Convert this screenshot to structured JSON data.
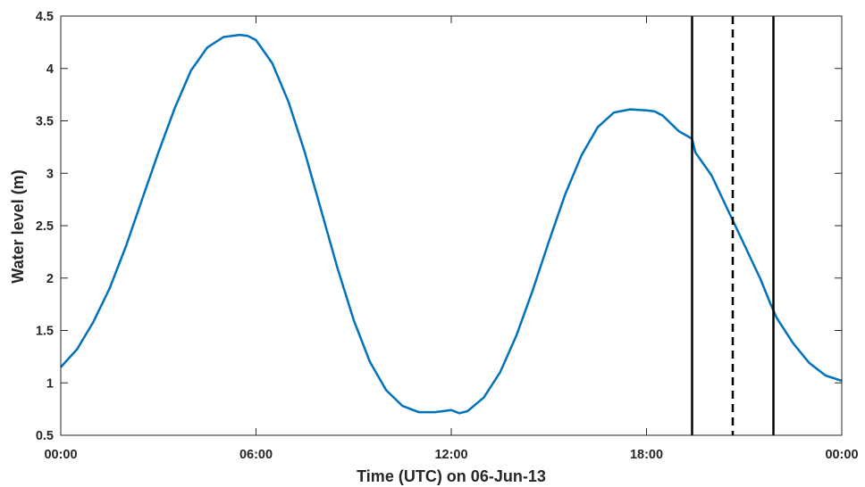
{
  "chart_data": {
    "type": "line",
    "title": "",
    "xlabel": "Time (UTC) on 06-Jun-13",
    "ylabel": "Water level (m)",
    "x_unit": "time of day (UTC), 06-Jun-13",
    "xlim": [
      "00:00",
      "24:00"
    ],
    "ylim": [
      0.5,
      4.5
    ],
    "xticks": [
      "00:00",
      "06:00",
      "12:00",
      "18:00",
      "00:00"
    ],
    "yticks": [
      "0.5",
      "1",
      "1.5",
      "2",
      "2.5",
      "3",
      "3.5",
      "4",
      "4.5"
    ],
    "grid": false,
    "legend": "none",
    "series": [
      {
        "color": "#0072BD",
        "x": [
          "00:00",
          "00:30",
          "01:00",
          "01:30",
          "02:00",
          "02:30",
          "03:00",
          "03:30",
          "04:00",
          "04:30",
          "05:00",
          "05:30",
          "05:45",
          "06:00",
          "06:30",
          "07:00",
          "07:30",
          "08:00",
          "08:30",
          "09:00",
          "09:30",
          "10:00",
          "10:30",
          "11:00",
          "11:30",
          "12:00",
          "12:15",
          "12:30",
          "13:00",
          "13:30",
          "14:00",
          "14:30",
          "15:00",
          "15:30",
          "16:00",
          "16:30",
          "17:00",
          "17:30",
          "18:00",
          "18:15",
          "18:30",
          "19:00",
          "19:30",
          "19:24",
          "20:00",
          "20:30",
          "21:00",
          "21:30",
          "21:48",
          "22:00",
          "22:30",
          "23:00",
          "23:30",
          "24:00"
        ],
        "y": [
          1.15,
          1.32,
          1.58,
          1.9,
          2.3,
          2.75,
          3.2,
          3.62,
          3.98,
          4.2,
          4.3,
          4.32,
          4.31,
          4.27,
          4.05,
          3.68,
          3.2,
          2.65,
          2.1,
          1.6,
          1.2,
          0.93,
          0.78,
          0.72,
          0.72,
          0.74,
          0.71,
          0.73,
          0.86,
          1.1,
          1.45,
          1.88,
          2.35,
          2.8,
          3.17,
          3.44,
          3.58,
          3.61,
          3.6,
          3.59,
          3.55,
          3.4,
          3.2,
          3.33,
          2.98,
          2.65,
          2.32,
          1.99,
          1.76,
          1.62,
          1.38,
          1.19,
          1.07,
          1.02
        ]
      }
    ],
    "vertical_lines": [
      {
        "x": "19:24",
        "style": "solid",
        "color": "#000000"
      },
      {
        "x": "20:39",
        "style": "dashed",
        "color": "#000000"
      },
      {
        "x": "21:54",
        "style": "solid",
        "color": "#000000"
      }
    ]
  }
}
